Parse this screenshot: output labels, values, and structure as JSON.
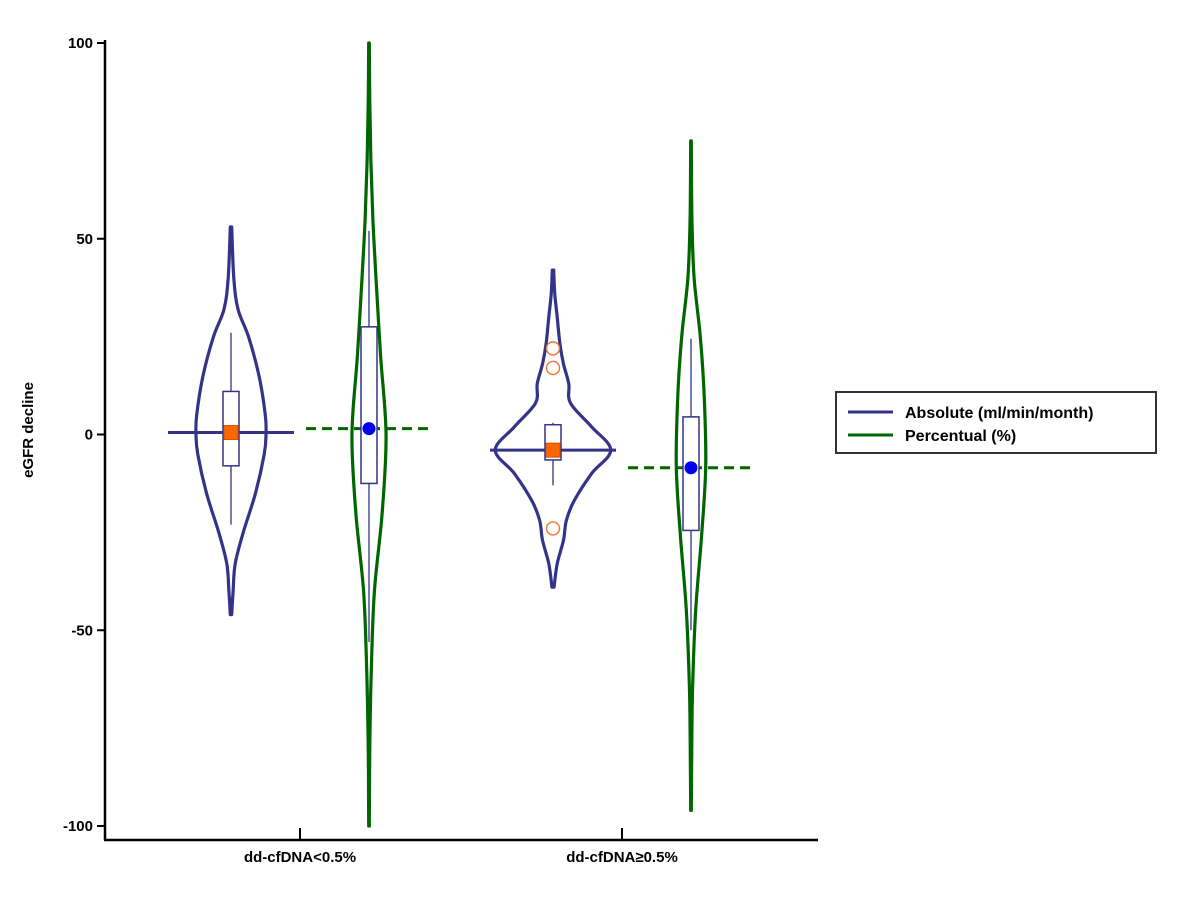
{
  "chart_data": {
    "type": "violin",
    "xlabel": "",
    "ylabel": "eGFR decline",
    "ylim": [
      -100,
      100
    ],
    "yticks": [
      100,
      50,
      0,
      -50,
      -100
    ],
    "categories": [
      "dd-cfDNA<0.5%",
      "dd-cfDNA≥0.5%"
    ],
    "legend": {
      "placement": "right"
    },
    "series": [
      {
        "name": "Absolute (ml/min/month)",
        "color": "#333388",
        "marker": "orange-square",
        "marker_color": "#ff6600",
        "groups": [
          {
            "category": "dd-cfDNA<0.5%",
            "mean": 0.5,
            "median": 0.5,
            "q1": -8,
            "q3": 11,
            "whisker_low": -23,
            "whisker_high": 26,
            "outliers": [],
            "range": [
              -46,
              53
            ],
            "density": [
              [
                -46,
                0.2
              ],
              [
                -40,
                0.6
              ],
              [
                -33,
                1.2
              ],
              [
                -25,
                3.5
              ],
              [
                -15,
                7
              ],
              [
                -5,
                9.5
              ],
              [
                0,
                10
              ],
              [
                5,
                9.8
              ],
              [
                15,
                8
              ],
              [
                25,
                5
              ],
              [
                32,
                2
              ],
              [
                40,
                0.8
              ],
              [
                53,
                0.2
              ]
            ]
          },
          {
            "category": "dd-cfDNA≥0.5%",
            "mean": -4,
            "median": -4,
            "q1": -6.5,
            "q3": 2.5,
            "whisker_low": -13,
            "whisker_high": 3,
            "outliers": [
              22,
              17,
              -24
            ],
            "range": [
              -39,
              42
            ],
            "density": [
              [
                -39,
                0.3
              ],
              [
                -33,
                1.2
              ],
              [
                -27,
                3
              ],
              [
                -22,
                3.8
              ],
              [
                -17,
                6
              ],
              [
                -10,
                11
              ],
              [
                -4,
                16.5
              ],
              [
                2,
                11
              ],
              [
                8,
                5
              ],
              [
                13,
                4.5
              ],
              [
                18,
                3
              ],
              [
                23,
                2
              ],
              [
                30,
                1.2
              ],
              [
                36,
                0.5
              ],
              [
                42,
                0.2
              ]
            ]
          }
        ]
      },
      {
        "name": "Percentual (%)",
        "color": "#006600",
        "marker": "blue-circle",
        "marker_color": "#0000ee",
        "groups": [
          {
            "category": "dd-cfDNA<0.5%",
            "mean": 1.5,
            "median": 1.5,
            "q1": -12.5,
            "q3": 27.5,
            "whisker_low": -53,
            "whisker_high": 52,
            "outliers": [],
            "range": [
              -100,
              100
            ],
            "density": [
              [
                -100,
                0.2
              ],
              [
                -80,
                0.5
              ],
              [
                -60,
                1.5
              ],
              [
                -40,
                3.5
              ],
              [
                -20,
                8.5
              ],
              [
                0,
                11
              ],
              [
                20,
                7.5
              ],
              [
                40,
                4.5
              ],
              [
                55,
                2.5
              ],
              [
                70,
                1.2
              ],
              [
                85,
                0.5
              ],
              [
                100,
                0.2
              ]
            ]
          },
          {
            "category": "dd-cfDNA≥0.5%",
            "mean": -8.5,
            "median": -8.5,
            "q1": -24.5,
            "q3": 4.5,
            "whisker_low": -50,
            "whisker_high": 24.5,
            "outliers": [],
            "range": [
              -96,
              75
            ],
            "density": [
              [
                -96,
                0.2
              ],
              [
                -80,
                0.5
              ],
              [
                -65,
                1
              ],
              [
                -45,
                3
              ],
              [
                -25,
                7
              ],
              [
                -8,
                9.5
              ],
              [
                10,
                8.5
              ],
              [
                25,
                6
              ],
              [
                40,
                2
              ],
              [
                55,
                0.6
              ],
              [
                75,
                0.2
              ]
            ]
          }
        ]
      }
    ]
  }
}
